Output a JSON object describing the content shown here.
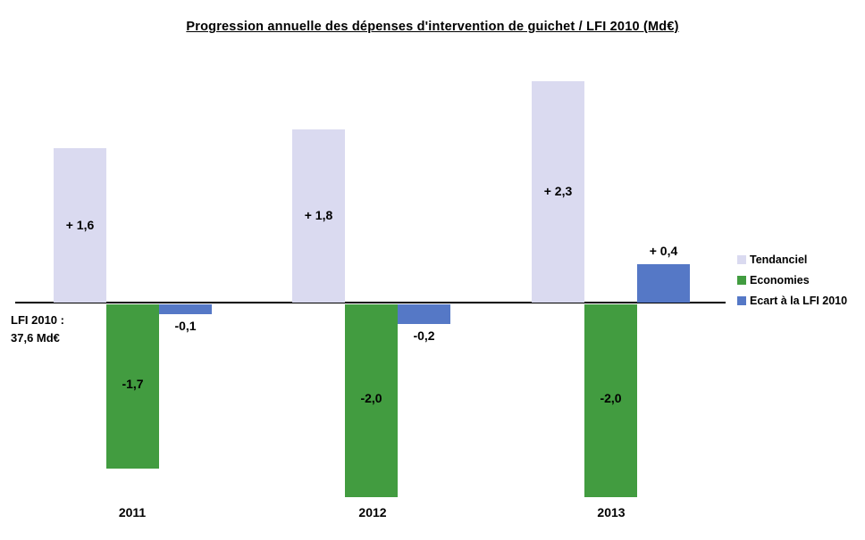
{
  "chart_data": {
    "type": "bar",
    "title": "Progression annuelle des dépenses d'intervention de guichet / LFI 2010 (Md€)",
    "categories": [
      "2011",
      "2012",
      "2013"
    ],
    "series": [
      {
        "name": "Tendanciel",
        "color": "#dadaf0",
        "values": [
          1.6,
          1.8,
          2.3
        ],
        "labels": [
          "+ 1,6",
          "+ 1,8",
          "+ 2,3"
        ]
      },
      {
        "name": "Economies",
        "color": "#429c40",
        "values": [
          -1.7,
          -2.0,
          -2.0
        ],
        "labels": [
          "-1,7",
          "-2,0",
          "-2,0"
        ]
      },
      {
        "name": "Ecart à la LFI 2010",
        "color": "#5578c6",
        "values": [
          -0.1,
          -0.2,
          0.4
        ],
        "labels": [
          "-0,1",
          "-0,2",
          "+ 0,4"
        ]
      }
    ],
    "annotation": {
      "line1": "LFI 2010 :",
      "line2": "37,6 Md€"
    },
    "ylabel": "",
    "xlabel": "",
    "ylim": [
      -2.5,
      2.5
    ],
    "grid": false,
    "legend_position": "right"
  }
}
